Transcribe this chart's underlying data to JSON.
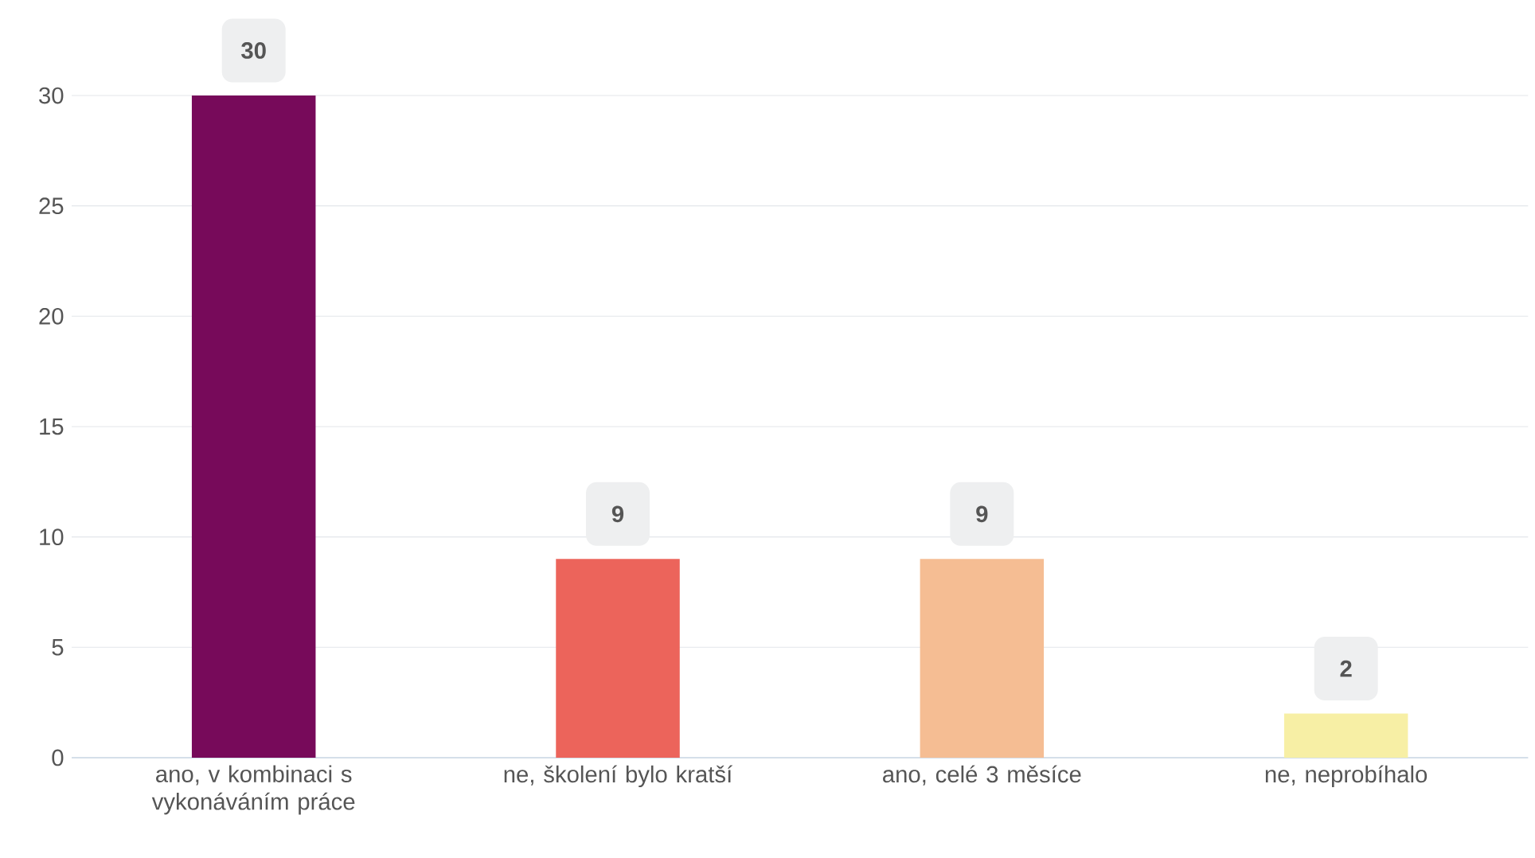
{
  "chart_data": {
    "type": "bar",
    "categories": [
      "ano, v kombinaci s vykonáváním práce",
      "ne, školení bylo kratší",
      "ano, celé 3 měsíce",
      "ne, neprobíhalo"
    ],
    "values": [
      30,
      9,
      9,
      2
    ],
    "colors": [
      "#770a5a",
      "#ec645b",
      "#f5bd93",
      "#f7efa5"
    ],
    "ylim": [
      0,
      30
    ],
    "yticks": [
      0,
      5,
      10,
      15,
      20,
      25,
      30
    ],
    "grid": "y",
    "data_labels": true
  }
}
